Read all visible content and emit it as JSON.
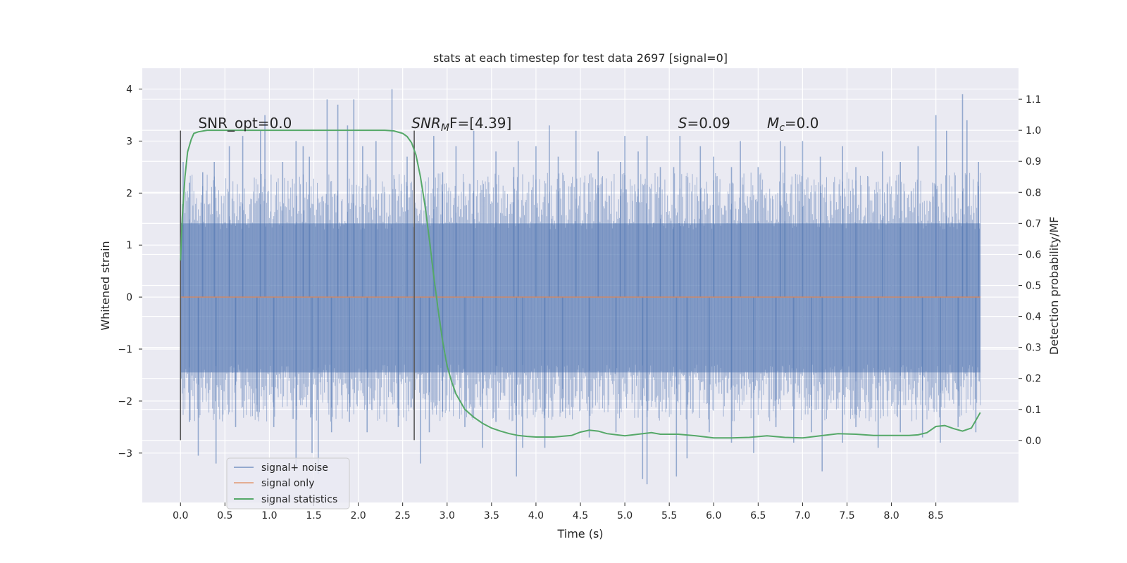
{
  "chart_data": {
    "type": "line",
    "title": "stats at each timestep for test data 2697 [signal=0]",
    "xlabel": "Time (s)",
    "ylabel_left": "Whitened strain",
    "ylabel_right": "Detection probability/MF",
    "xlim": [
      -0.43,
      9.43
    ],
    "ylim_left": [
      -3.95,
      4.4
    ],
    "ylim_right": [
      -0.2,
      1.2
    ],
    "x_ticks": [
      "0.0",
      "0.5",
      "1.0",
      "1.5",
      "2.0",
      "2.5",
      "3.0",
      "3.5",
      "4.0",
      "4.5",
      "5.0",
      "5.5",
      "6.0",
      "6.5",
      "7.0",
      "7.5",
      "8.0",
      "8.5"
    ],
    "y_ticks_left": [
      "4",
      "3",
      "2",
      "1",
      "0",
      "−1",
      "−2",
      "−3"
    ],
    "y_ticks_right": [
      "1.1",
      "1.0",
      "0.9",
      "0.8",
      "0.7",
      "0.6",
      "0.5",
      "0.4",
      "0.3",
      "0.2",
      "0.1",
      "0.0"
    ],
    "grid": true,
    "legend_position": "lower-left",
    "series": [
      {
        "name": "signal+ noise",
        "axis": "left",
        "color": "#4c72b0",
        "noise_band": [
          -1.45,
          1.42
        ],
        "x_range": [
          0.0,
          9.0
        ],
        "spikes": [
          [
            0.03,
            2.6
          ],
          [
            0.1,
            2.2
          ],
          [
            0.25,
            2.4
          ],
          [
            0.38,
            2.6
          ],
          [
            0.55,
            2.9
          ],
          [
            0.7,
            3.1
          ],
          [
            0.9,
            3.2
          ],
          [
            0.95,
            3.5
          ],
          [
            1.15,
            2.6
          ],
          [
            1.3,
            3.0
          ],
          [
            1.38,
            2.9
          ],
          [
            1.45,
            2.7
          ],
          [
            1.65,
            3.8
          ],
          [
            1.77,
            3.7
          ],
          [
            1.88,
            3.3
          ],
          [
            1.95,
            3.8
          ],
          [
            2.05,
            2.9
          ],
          [
            2.2,
            3.0
          ],
          [
            2.38,
            4.0
          ],
          [
            2.55,
            2.7
          ],
          [
            2.85,
            3.1
          ],
          [
            2.95,
            2.4
          ],
          [
            3.1,
            2.9
          ],
          [
            3.3,
            3.2
          ],
          [
            3.55,
            2.8
          ],
          [
            3.75,
            2.5
          ],
          [
            3.8,
            3.0
          ],
          [
            4.0,
            2.9
          ],
          [
            4.15,
            3.3
          ],
          [
            4.25,
            2.7
          ],
          [
            4.45,
            3.2
          ],
          [
            4.7,
            2.8
          ],
          [
            4.95,
            2.6
          ],
          [
            5.0,
            3.1
          ],
          [
            5.15,
            2.8
          ],
          [
            5.25,
            3.1
          ],
          [
            5.4,
            2.5
          ],
          [
            5.55,
            2.5
          ],
          [
            5.62,
            3.1
          ],
          [
            5.85,
            2.9
          ],
          [
            6.0,
            2.7
          ],
          [
            6.2,
            2.5
          ],
          [
            6.3,
            3.0
          ],
          [
            6.5,
            2.5
          ],
          [
            6.75,
            3.0
          ],
          [
            6.8,
            2.9
          ],
          [
            7.0,
            3.0
          ],
          [
            7.2,
            2.7
          ],
          [
            7.45,
            2.9
          ],
          [
            7.6,
            2.5
          ],
          [
            7.9,
            2.8
          ],
          [
            8.1,
            2.6
          ],
          [
            8.3,
            2.9
          ],
          [
            8.5,
            3.5
          ],
          [
            8.62,
            3.2
          ],
          [
            8.8,
            3.9
          ],
          [
            8.85,
            3.4
          ],
          [
            8.98,
            2.6
          ],
          [
            0.1,
            -2.4
          ],
          [
            0.2,
            -2.7
          ],
          [
            0.2,
            -3.05
          ],
          [
            0.4,
            -3.2
          ],
          [
            0.62,
            -2.5
          ],
          [
            0.86,
            -2.2
          ],
          [
            1.05,
            -2.5
          ],
          [
            1.3,
            -3.3
          ],
          [
            1.48,
            -3.0
          ],
          [
            1.55,
            -3.4
          ],
          [
            1.7,
            -2.6
          ],
          [
            1.9,
            -2.4
          ],
          [
            2.1,
            -2.6
          ],
          [
            2.45,
            -2.5
          ],
          [
            2.7,
            -3.2
          ],
          [
            2.8,
            -2.6
          ],
          [
            2.95,
            -2.2
          ],
          [
            3.2,
            -2.5
          ],
          [
            3.4,
            -2.9
          ],
          [
            3.55,
            -2.4
          ],
          [
            3.78,
            -3.45
          ],
          [
            3.85,
            -2.9
          ],
          [
            4.1,
            -2.9
          ],
          [
            4.3,
            -2.2
          ],
          [
            4.6,
            -2.7
          ],
          [
            4.9,
            -2.6
          ],
          [
            5.2,
            -3.5
          ],
          [
            5.25,
            -3.6
          ],
          [
            5.58,
            -3.45
          ],
          [
            5.7,
            -3.1
          ],
          [
            5.95,
            -2.6
          ],
          [
            6.2,
            -2.8
          ],
          [
            6.45,
            -3.0
          ],
          [
            6.7,
            -2.5
          ],
          [
            6.9,
            -2.8
          ],
          [
            7.1,
            -2.6
          ],
          [
            7.22,
            -3.35
          ],
          [
            7.45,
            -2.8
          ],
          [
            7.6,
            -2.5
          ],
          [
            7.85,
            -2.9
          ],
          [
            8.1,
            -2.6
          ],
          [
            8.35,
            -2.7
          ],
          [
            8.55,
            -2.8
          ],
          [
            8.75,
            -2.5
          ],
          [
            8.95,
            -2.6
          ]
        ]
      },
      {
        "name": "signal only",
        "axis": "left",
        "color": "#dd8452",
        "x": [
          0.0,
          9.0
        ],
        "y": [
          0.0,
          0.0
        ]
      },
      {
        "name": "signal statistics",
        "axis": "right",
        "color": "#55a868",
        "x": [
          0.0,
          0.02,
          0.05,
          0.08,
          0.12,
          0.15,
          0.2,
          0.3,
          0.5,
          1.0,
          1.5,
          2.0,
          2.3,
          2.4,
          2.5,
          2.55,
          2.6,
          2.65,
          2.7,
          2.75,
          2.8,
          2.85,
          2.9,
          2.95,
          3.0,
          3.05,
          3.1,
          3.2,
          3.3,
          3.4,
          3.5,
          3.6,
          3.7,
          3.8,
          3.9,
          4.0,
          4.2,
          4.4,
          4.5,
          4.6,
          4.7,
          4.8,
          5.0,
          5.2,
          5.3,
          5.4,
          5.6,
          5.8,
          6.0,
          6.2,
          6.4,
          6.6,
          6.8,
          7.0,
          7.2,
          7.4,
          7.6,
          7.8,
          8.0,
          8.2,
          8.3,
          8.4,
          8.5,
          8.6,
          8.7,
          8.8,
          8.9,
          9.0
        ],
        "y": [
          0.58,
          0.72,
          0.85,
          0.93,
          0.97,
          0.99,
          0.995,
          1.0,
          1.0,
          1.0,
          1.0,
          1.0,
          1.0,
          0.998,
          0.99,
          0.98,
          0.96,
          0.92,
          0.85,
          0.76,
          0.65,
          0.53,
          0.42,
          0.32,
          0.24,
          0.19,
          0.15,
          0.1,
          0.075,
          0.055,
          0.04,
          0.03,
          0.022,
          0.016,
          0.013,
          0.011,
          0.011,
          0.016,
          0.027,
          0.033,
          0.03,
          0.022,
          0.015,
          0.022,
          0.025,
          0.02,
          0.02,
          0.015,
          0.008,
          0.008,
          0.01,
          0.015,
          0.01,
          0.008,
          0.015,
          0.022,
          0.02,
          0.016,
          0.016,
          0.016,
          0.018,
          0.025,
          0.045,
          0.048,
          0.038,
          0.03,
          0.04,
          0.09
        ]
      }
    ],
    "vertical_lines": [
      {
        "x": 0.0,
        "y_range": [
          -2.75,
          3.2
        ],
        "color": "#555555"
      },
      {
        "x": 2.63,
        "y_range": [
          -2.75,
          3.2
        ],
        "color": "#555555"
      }
    ],
    "annotations": [
      {
        "x": 0.2,
        "y": 3.25,
        "text": "SNR_opt=0.0"
      },
      {
        "x": 2.6,
        "y": 3.25,
        "text": "SNR",
        "sub": "M",
        "tail": "F=[4.39]",
        "italic": true
      },
      {
        "x": 5.6,
        "y": 3.25,
        "text": "S",
        "tail": "=0.09",
        "italic": true
      },
      {
        "x": 6.6,
        "y": 3.25,
        "text": "M",
        "sub": "c",
        "tail": "=0.0",
        "italic": true
      }
    ]
  }
}
